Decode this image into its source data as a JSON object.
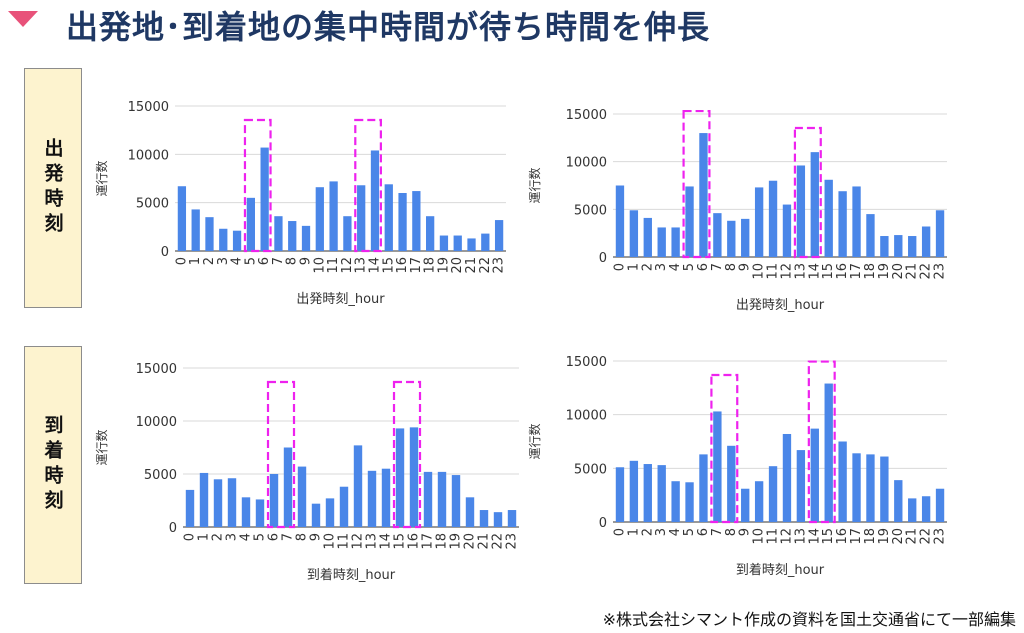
{
  "title": "出発地･到着地の集中時間が待ち時間を伸長",
  "side_labels": {
    "departure": "出発時刻",
    "arrival": "到着時刻"
  },
  "footnote": "※株式会社シマント作成の資料を国土交通省にて一部編集",
  "colors": {
    "bar": "#4a86e8",
    "highlight": "#ee22ee",
    "title": "#1f3864",
    "side_bg": "#fdf3cf",
    "marker": "#e8527a"
  },
  "chart_data": [
    {
      "type": "bar",
      "xlabel": "出発時刻_hour",
      "ylabel": "運行数",
      "ylim": [
        0,
        15000
      ],
      "yticks": [
        0,
        5000,
        10000,
        15000
      ],
      "categories": [
        "0",
        "1",
        "2",
        "3",
        "4",
        "5",
        "6",
        "7",
        "8",
        "9",
        "10",
        "11",
        "12",
        "13",
        "14",
        "15",
        "16",
        "17",
        "18",
        "19",
        "20",
        "21",
        "22",
        "23"
      ],
      "values": [
        6700,
        4300,
        3500,
        2300,
        2100,
        5500,
        10700,
        3600,
        3100,
        2600,
        6600,
        7200,
        3600,
        6800,
        10400,
        6900,
        6000,
        6200,
        3600,
        1600,
        1600,
        1300,
        1800,
        3200
      ],
      "highlights": [
        [
          5,
          6
        ],
        [
          13,
          14
        ]
      ]
    },
    {
      "type": "bar",
      "xlabel": "出発時刻_hour",
      "ylabel": "運行数",
      "ylim": [
        0,
        15000
      ],
      "yticks": [
        0,
        5000,
        10000,
        15000
      ],
      "categories": [
        "0",
        "1",
        "2",
        "3",
        "4",
        "5",
        "6",
        "7",
        "8",
        "9",
        "10",
        "11",
        "12",
        "13",
        "14",
        "15",
        "16",
        "17",
        "18",
        "19",
        "20",
        "21",
        "22",
        "23"
      ],
      "values": [
        7500,
        4900,
        4100,
        3100,
        3100,
        7400,
        13000,
        4600,
        3800,
        4000,
        7300,
        8000,
        5500,
        9600,
        11000,
        8100,
        6900,
        7400,
        4500,
        2200,
        2300,
        2200,
        3200,
        4900
      ],
      "highlights": [
        [
          5,
          6
        ],
        [
          13,
          14
        ]
      ]
    },
    {
      "type": "bar",
      "xlabel": "到着時刻_hour",
      "ylabel": "運行数",
      "ylim": [
        0,
        15000
      ],
      "yticks": [
        0,
        5000,
        10000,
        15000
      ],
      "categories": [
        "0",
        "1",
        "2",
        "3",
        "4",
        "5",
        "6",
        "7",
        "8",
        "9",
        "10",
        "11",
        "12",
        "13",
        "14",
        "15",
        "16",
        "17",
        "18",
        "19",
        "20",
        "21",
        "22",
        "23"
      ],
      "values": [
        3500,
        5100,
        4500,
        4600,
        2800,
        2600,
        5000,
        7500,
        5700,
        2200,
        2700,
        3800,
        7700,
        5300,
        5500,
        9300,
        9400,
        5200,
        5200,
        4900,
        2800,
        1600,
        1400,
        1600
      ],
      "highlights": [
        [
          6,
          7
        ],
        [
          15,
          16
        ]
      ]
    },
    {
      "type": "bar",
      "xlabel": "到着時刻_hour",
      "ylabel": "運行数",
      "ylim": [
        0,
        15000
      ],
      "yticks": [
        0,
        5000,
        10000,
        15000
      ],
      "categories": [
        "0",
        "1",
        "2",
        "3",
        "4",
        "5",
        "6",
        "7",
        "8",
        "9",
        "10",
        "11",
        "12",
        "13",
        "14",
        "15",
        "16",
        "17",
        "18",
        "19",
        "20",
        "21",
        "22",
        "23"
      ],
      "values": [
        5100,
        5700,
        5400,
        5300,
        3800,
        3700,
        6300,
        10300,
        7100,
        3100,
        3800,
        5200,
        8200,
        6700,
        8700,
        12900,
        7500,
        6400,
        6300,
        6100,
        3900,
        2200,
        2400,
        3100
      ],
      "highlights": [
        [
          7,
          8
        ],
        [
          14,
          15
        ]
      ]
    }
  ]
}
